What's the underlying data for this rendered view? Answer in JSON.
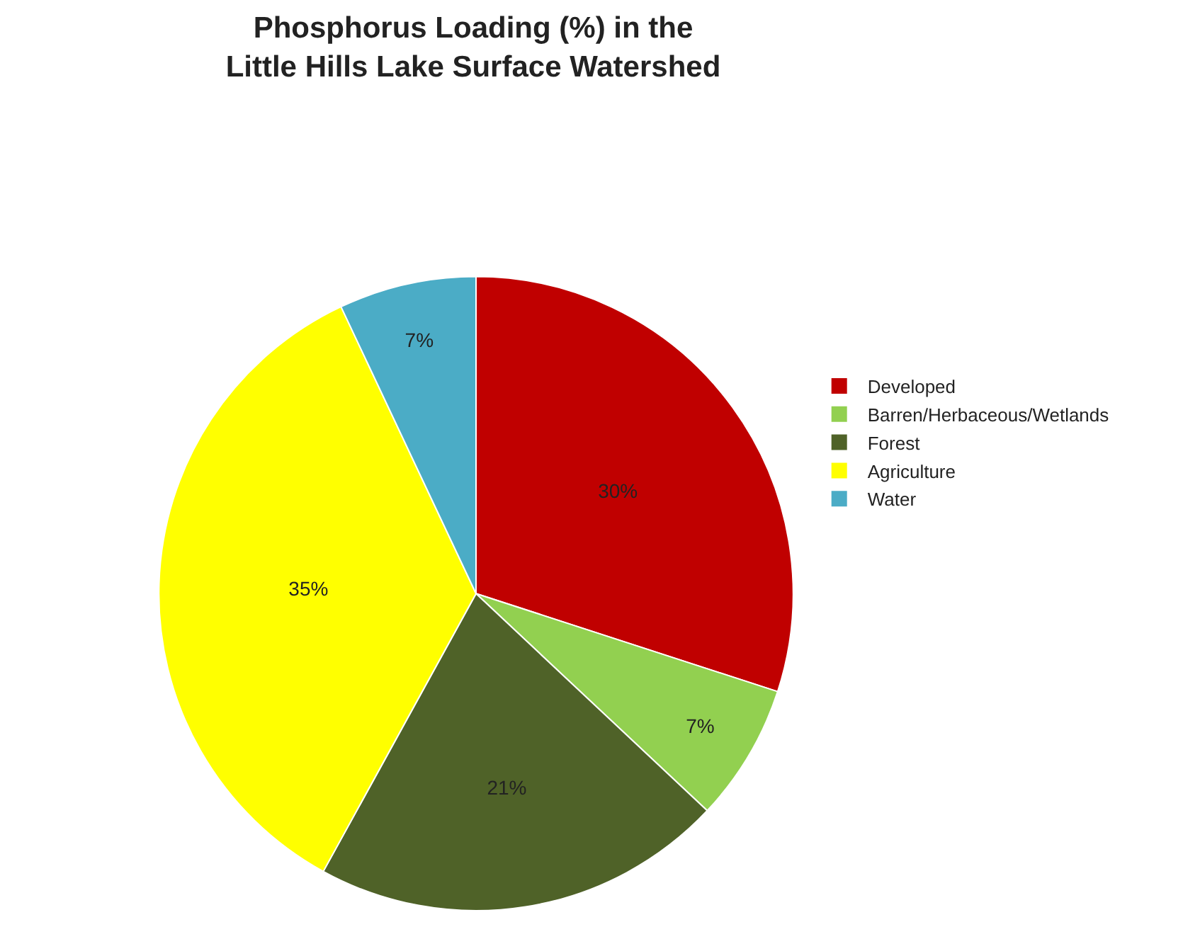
{
  "chart_data": {
    "type": "pie",
    "title": "Phosphorus Loading (%) in the\nLittle Hills Lake Surface Watershed",
    "categories": [
      "Developed",
      "Barren/Herbaceous/Wetlands",
      "Forest",
      "Agriculture",
      "Water"
    ],
    "values": [
      30,
      7,
      21,
      35,
      7
    ],
    "colors": [
      "#c00000",
      "#92d050",
      "#4f6228",
      "#ffff00",
      "#4bacc6"
    ],
    "value_labels": [
      "30%",
      "7%",
      "21%",
      "35%",
      "7%"
    ],
    "legend": "right"
  }
}
